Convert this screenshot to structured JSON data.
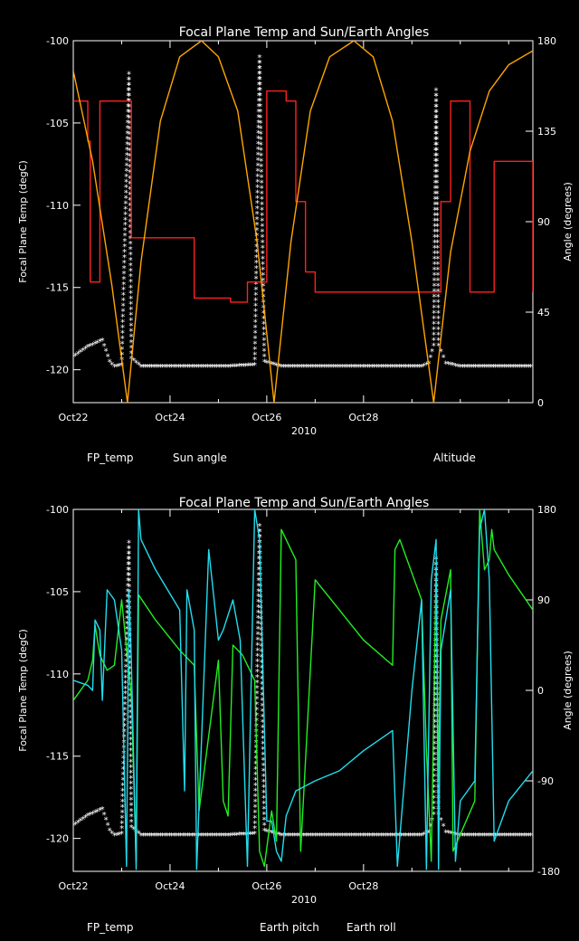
{
  "chart_data": [
    {
      "type": "line",
      "title": "Focal Plane Temp and Sun/Earth Angles",
      "ylabel_left": "Focal Plane Temp (degC)",
      "ylabel_right": "Angle (degrees)",
      "xlabel": "2010",
      "xlim": [
        22,
        31.5
      ],
      "ylim_left": [
        -122,
        -100
      ],
      "ylim_right": [
        0,
        180
      ],
      "x_ticks": [
        {
          "x": 22,
          "label": "Oct22"
        },
        {
          "x": 24,
          "label": "Oct24"
        },
        {
          "x": 26,
          "label": "Oct26"
        },
        {
          "x": 28,
          "label": "Oct28"
        }
      ],
      "y_ticks_left": [
        "-100",
        "-105",
        "-110",
        "-115",
        "-120"
      ],
      "y_ticks_left_values": [
        -100,
        -105,
        -110,
        -115,
        -120
      ],
      "y_ticks_right": [
        "180",
        "135",
        "90",
        "45",
        "0"
      ],
      "y_ticks_right_values": [
        180,
        135,
        90,
        45,
        0
      ],
      "legend": [
        {
          "label": "FP_temp",
          "color": "#ffffff"
        },
        {
          "label": "Sun angle",
          "color": "#ff2020"
        },
        {
          "label": "Altitude",
          "color": "#ffa500"
        }
      ],
      "series": [
        {
          "name": "FP_temp",
          "axis": "left",
          "color": "#ffffff",
          "style": "marker",
          "x": [
            22.0,
            22.3,
            22.6,
            22.75,
            22.85,
            23.0,
            23.15,
            23.2,
            23.4,
            23.8,
            24.5,
            25.2,
            25.75,
            25.85,
            25.95,
            26.3,
            27.0,
            27.8,
            28.6,
            29.2,
            29.35,
            29.45,
            29.5,
            29.55,
            29.7,
            30.0,
            30.5,
            31.0,
            31.5
          ],
          "y": [
            -119.2,
            -118.6,
            -118.2,
            -119.5,
            -119.8,
            -119.7,
            -102.0,
            -119.3,
            -119.8,
            -119.8,
            -119.8,
            -119.8,
            -119.7,
            -101.0,
            -119.5,
            -119.8,
            -119.8,
            -119.8,
            -119.8,
            -119.8,
            -119.6,
            -118.5,
            -103.0,
            -118.5,
            -119.6,
            -119.8,
            -119.8,
            -119.8,
            -119.8
          ]
        },
        {
          "name": "Sun angle",
          "axis": "right",
          "color": "#ff2020",
          "style": "step",
          "x": [
            22.0,
            22.22,
            22.3,
            22.35,
            22.42,
            22.55,
            22.65,
            22.8,
            23.0,
            23.15,
            23.2,
            23.8,
            24.5,
            24.6,
            25.1,
            25.25,
            25.5,
            25.6,
            25.75,
            25.9,
            26.0,
            26.15,
            26.4,
            26.6,
            26.8,
            27.0,
            28.0,
            28.1,
            29.0,
            29.2,
            29.45,
            29.6,
            29.8,
            30.0,
            30.2,
            30.3,
            30.5,
            30.7,
            31.0,
            31.5
          ],
          "y": [
            150,
            150,
            130,
            60,
            60,
            150,
            150,
            150,
            150,
            150,
            82,
            82,
            52,
            52,
            52,
            50,
            50,
            60,
            60,
            60,
            155,
            155,
            150,
            100,
            65,
            55,
            55,
            55,
            55,
            55,
            55,
            100,
            150,
            150,
            55,
            55,
            55,
            120,
            120,
            55
          ]
        },
        {
          "name": "Altitude",
          "axis": "right",
          "color": "#ffa500",
          "style": "curve",
          "x": [
            22.0,
            22.4,
            22.8,
            23.12,
            23.4,
            23.8,
            24.2,
            24.65,
            25.0,
            25.4,
            25.8,
            26.15,
            26.5,
            26.9,
            27.3,
            27.8,
            28.2,
            28.6,
            29.0,
            29.45,
            29.8,
            30.2,
            30.6,
            31.0,
            31.5
          ],
          "y": [
            165,
            120,
            58,
            0,
            70,
            140,
            172,
            180,
            172,
            145,
            80,
            0,
            80,
            145,
            172,
            180,
            172,
            140,
            80,
            0,
            75,
            125,
            155,
            168,
            175
          ]
        }
      ]
    },
    {
      "type": "line",
      "title": "Focal Plane Temp and Sun/Earth Angles",
      "ylabel_left": "Focal Plane Temp (degC)",
      "ylabel_right": "Angle (degrees)",
      "xlabel": "2010",
      "xlim": [
        22,
        31.5
      ],
      "ylim_left": [
        -122,
        -100
      ],
      "ylim_right": [
        -180,
        180
      ],
      "x_ticks": [
        {
          "x": 22,
          "label": "Oct22"
        },
        {
          "x": 24,
          "label": "Oct24"
        },
        {
          "x": 26,
          "label": "Oct26"
        },
        {
          "x": 28,
          "label": "Oct28"
        }
      ],
      "y_ticks_left": [
        "-100",
        "-105",
        "-110",
        "-115",
        "-120"
      ],
      "y_ticks_left_values": [
        -100,
        -105,
        -110,
        -115,
        -120
      ],
      "y_ticks_right": [
        "180",
        "90",
        "0",
        "-90",
        "-180"
      ],
      "y_ticks_right_values": [
        180,
        90,
        0,
        -90,
        -180
      ],
      "legend": [
        {
          "label": "FP_temp",
          "color": "#ffffff"
        },
        {
          "label": "Earth pitch",
          "color": "#22ee22"
        },
        {
          "label": "Earth roll",
          "color": "#22ddee"
        }
      ],
      "series": [
        {
          "name": "FP_temp",
          "axis": "left",
          "color": "#ffffff",
          "style": "marker",
          "x": [
            22.0,
            22.3,
            22.6,
            22.75,
            22.85,
            23.0,
            23.15,
            23.2,
            23.4,
            23.8,
            24.5,
            25.2,
            25.75,
            25.85,
            25.95,
            26.3,
            27.0,
            27.8,
            28.6,
            29.2,
            29.35,
            29.45,
            29.5,
            29.55,
            29.7,
            30.0,
            30.5,
            31.0,
            31.5
          ],
          "y": [
            -119.2,
            -118.6,
            -118.2,
            -119.5,
            -119.8,
            -119.7,
            -102.0,
            -119.3,
            -119.8,
            -119.8,
            -119.8,
            -119.8,
            -119.7,
            -101.0,
            -119.5,
            -119.8,
            -119.8,
            -119.8,
            -119.8,
            -119.8,
            -119.6,
            -118.5,
            -103.0,
            -118.5,
            -119.6,
            -119.8,
            -119.8,
            -119.8,
            -119.8
          ]
        },
        {
          "name": "Earth pitch",
          "axis": "right",
          "color": "#22ee22",
          "style": "line",
          "x": [
            22.0,
            22.3,
            22.4,
            22.45,
            22.55,
            22.6,
            22.7,
            22.85,
            23.0,
            23.2,
            23.3,
            23.35,
            23.7,
            24.2,
            24.5,
            24.6,
            25.0,
            25.1,
            25.2,
            25.3,
            25.5,
            25.75,
            25.85,
            25.95,
            26.1,
            26.2,
            26.3,
            26.6,
            26.7,
            27.0,
            27.5,
            28.0,
            28.6,
            28.65,
            28.75,
            29.2,
            29.3,
            29.4,
            29.5,
            29.55,
            29.6,
            29.8,
            29.85,
            30.3,
            30.4,
            30.5,
            30.6,
            30.65,
            30.7,
            31.0,
            31.5
          ],
          "y": [
            -10,
            10,
            30,
            65,
            35,
            30,
            20,
            25,
            90,
            -5,
            -170,
            95,
            70,
            40,
            25,
            -120,
            30,
            -110,
            -125,
            45,
            35,
            10,
            -160,
            -175,
            -120,
            -150,
            160,
            130,
            -160,
            110,
            80,
            50,
            25,
            140,
            150,
            90,
            -60,
            -170,
            120,
            -90,
            70,
            120,
            -160,
            -110,
            180,
            120,
            130,
            160,
            140,
            115,
            80
          ]
        },
        {
          "name": "Earth roll",
          "axis": "right",
          "color": "#22ddee",
          "style": "line",
          "x": [
            22.0,
            22.3,
            22.4,
            22.45,
            22.55,
            22.6,
            22.7,
            22.85,
            23.0,
            23.1,
            23.15,
            23.2,
            23.3,
            23.35,
            23.4,
            23.7,
            24.2,
            24.3,
            24.35,
            24.5,
            24.55,
            24.8,
            25.0,
            25.1,
            25.3,
            25.45,
            25.6,
            25.75,
            25.85,
            26.0,
            26.1,
            26.2,
            26.3,
            26.4,
            26.6,
            27.0,
            27.5,
            28.0,
            28.6,
            28.7,
            29.0,
            29.2,
            29.3,
            29.4,
            29.5,
            29.55,
            29.6,
            29.8,
            29.9,
            30.0,
            30.3,
            30.4,
            30.5,
            30.6,
            30.7,
            31.0,
            31.5
          ],
          "y": [
            10,
            5,
            0,
            70,
            60,
            -10,
            100,
            90,
            40,
            -175,
            100,
            30,
            -178,
            180,
            150,
            120,
            80,
            -100,
            100,
            60,
            -178,
            140,
            50,
            60,
            90,
            50,
            -175,
            180,
            150,
            -130,
            -130,
            -160,
            -170,
            -125,
            -100,
            -90,
            -80,
            -60,
            -40,
            -175,
            0,
            90,
            -178,
            110,
            150,
            -178,
            40,
            100,
            -170,
            -110,
            -90,
            160,
            180,
            110,
            -150,
            -110,
            -80
          ]
        }
      ]
    }
  ]
}
